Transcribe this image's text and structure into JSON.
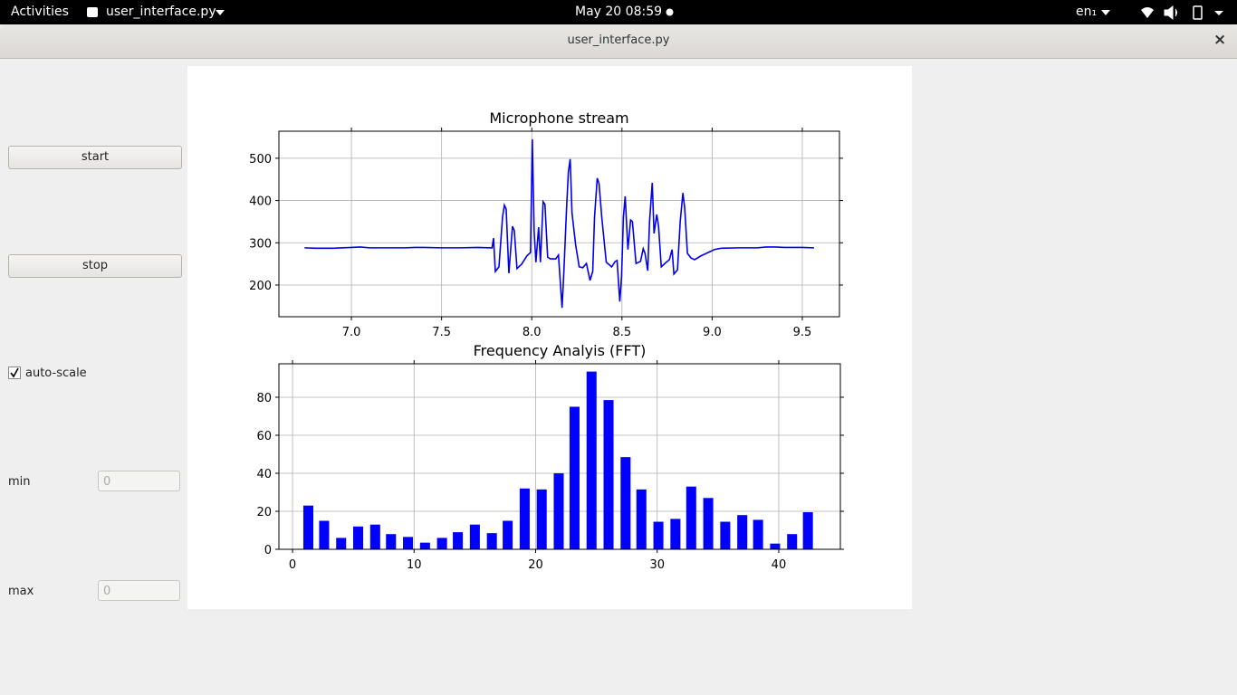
{
  "topbar": {
    "activities": "Activities",
    "app": "user_interface.py",
    "clock": "May 20  08:59",
    "lang": "en₁"
  },
  "window": {
    "title": "user_interface.py",
    "close": "×"
  },
  "controls": {
    "start": "start",
    "stop": "stop",
    "auto_scale": "auto-scale",
    "min_label": "min",
    "min_value": "0",
    "max_label": "max",
    "max_value": "0"
  },
  "chart_data": [
    {
      "type": "line",
      "title": "Microphone stream",
      "color": "#0000ee",
      "grid": true,
      "x": [
        6.74,
        6.8,
        6.9,
        7.0,
        7.05,
        7.1,
        7.2,
        7.3,
        7.35,
        7.4,
        7.5,
        7.6,
        7.7,
        7.78,
        7.788,
        7.798,
        7.818,
        7.838,
        7.848,
        7.858,
        7.873,
        7.893,
        7.903,
        7.918,
        7.943,
        7.973,
        7.993,
        8.003,
        8.013,
        8.023,
        8.038,
        8.048,
        8.063,
        8.073,
        8.088,
        8.103,
        8.133,
        8.148,
        8.168,
        8.178,
        8.193,
        8.203,
        8.213,
        8.223,
        8.243,
        8.263,
        8.283,
        8.303,
        8.323,
        8.338,
        8.348,
        8.363,
        8.373,
        8.388,
        8.413,
        8.443,
        8.463,
        8.473,
        8.488,
        8.498,
        8.508,
        8.518,
        8.533,
        8.548,
        8.558,
        8.578,
        8.603,
        8.618,
        8.628,
        8.643,
        8.653,
        8.668,
        8.678,
        8.693,
        8.703,
        8.718,
        8.738,
        8.763,
        8.778,
        8.788,
        8.808,
        8.823,
        8.838,
        8.848,
        8.863,
        8.883,
        8.903,
        8.938,
        9.013,
        9.05,
        9.15,
        9.25,
        9.3,
        9.35,
        9.4,
        9.5,
        9.565
      ],
      "values": [
        288,
        287,
        287,
        289,
        290,
        288,
        288,
        288,
        289,
        289,
        288,
        288,
        289,
        288,
        311,
        232,
        243,
        361,
        389,
        380,
        228,
        339,
        329,
        239,
        249,
        269,
        277,
        545,
        329,
        254,
        337,
        254,
        397,
        391,
        266,
        262,
        262,
        271,
        146,
        232,
        382,
        468,
        498,
        371,
        296,
        243,
        241,
        251,
        211,
        232,
        361,
        453,
        440,
        361,
        254,
        243,
        256,
        258,
        161,
        221,
        361,
        410,
        284,
        354,
        350,
        251,
        256,
        286,
        275,
        234,
        350,
        442,
        322,
        367,
        339,
        243,
        251,
        260,
        284,
        226,
        236,
        350,
        418,
        382,
        275,
        264,
        260,
        269,
        284,
        287,
        288,
        288,
        290,
        290,
        289,
        289,
        288
      ],
      "xlim": [
        6.598,
        9.706
      ],
      "ylim": [
        125,
        564
      ],
      "xticks": [
        {
          "value": 7,
          "label": "7.0"
        },
        7.5,
        {
          "value": 8,
          "label": "8.0"
        },
        8.5,
        {
          "value": 9,
          "label": "9.0"
        },
        9.5
      ],
      "yticks": [
        200,
        300,
        400,
        500
      ]
    },
    {
      "type": "bar",
      "title": "Frequency Analyis (FFT)",
      "color": "#0000ff",
      "grid": true,
      "x": [
        1.3,
        2.6,
        4.0,
        5.4,
        6.8,
        8.1,
        9.5,
        10.9,
        12.3,
        13.6,
        15.0,
        16.4,
        17.7,
        19.1,
        20.5,
        21.9,
        23.2,
        24.6,
        26.0,
        27.4,
        28.7,
        30.1,
        31.5,
        32.8,
        34.2,
        35.6,
        37.0,
        38.3,
        39.7,
        41.1,
        42.4
      ],
      "values": [
        23,
        15,
        6,
        12,
        13,
        8,
        6.5,
        3.5,
        6,
        9,
        13,
        8.5,
        15,
        32,
        31.5,
        40,
        75,
        93.5,
        78.5,
        48.5,
        31.5,
        14.5,
        16,
        33,
        27,
        14.5,
        18,
        15.5,
        3,
        8,
        19.5
      ],
      "xlim": [
        -1.12,
        45.07
      ],
      "ylim": [
        0,
        97.6
      ],
      "xticks": [
        0,
        10,
        20,
        30,
        40
      ],
      "yticks": [
        0,
        20,
        40,
        60,
        80
      ]
    }
  ]
}
